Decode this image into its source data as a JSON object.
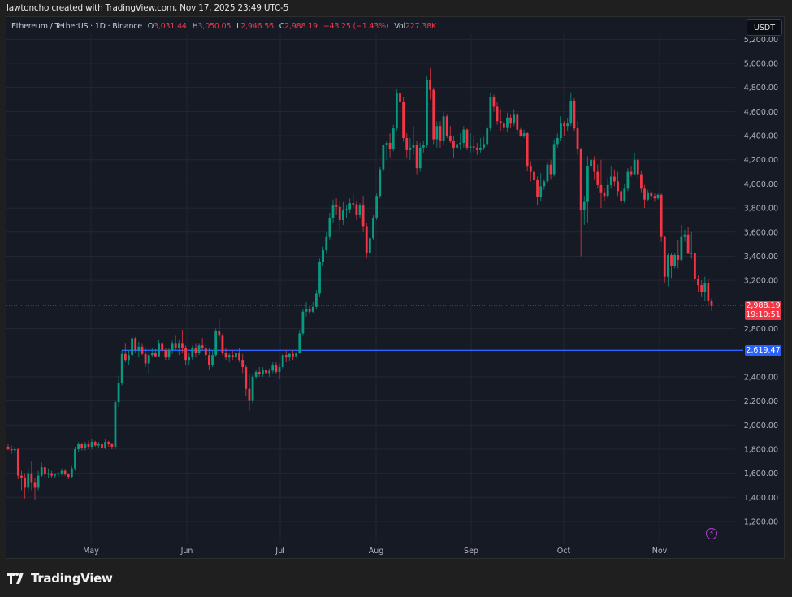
{
  "header": {
    "credit": "lawtoncho created with TradingView.com, Nov 17, 2025 23:49 UTC-5"
  },
  "legend": {
    "symbol": "Ethereum / TetherUS · 1D · Binance",
    "open_label": "O",
    "open": "3,031.44",
    "high_label": "H",
    "high": "3,050.05",
    "low_label": "L",
    "low": "2,946.56",
    "close_label": "C",
    "close": "2,988.19",
    "change": "−43.25 (−1.43%)",
    "vol_label": "Vol",
    "vol": "227.38K"
  },
  "currency_button": "USDT",
  "price_badge": {
    "price": "2,988.19",
    "countdown": "19:10:51",
    "color": "#f23645"
  },
  "hline_badge": {
    "price": "2,619.47",
    "color": "#2962ff"
  },
  "brand": "TradingView",
  "colors": {
    "up": "#089981",
    "down": "#f23645",
    "hline": "#2962ff",
    "background": "#161a25",
    "grid": "#232734"
  },
  "chart_data": {
    "type": "candlestick",
    "title": "Ethereum / TetherUS · 1D · Binance",
    "xlabel": "",
    "ylabel": "USDT",
    "ylim": [
      1100,
      5250
    ],
    "y_ticks": [
      "5,200.00",
      "5,000.00",
      "4,800.00",
      "4,600.00",
      "4,400.00",
      "4,200.00",
      "4,000.00",
      "3,800.00",
      "3,600.00",
      "3,400.00",
      "3,200.00",
      "2,800.00",
      "2,400.00",
      "2,200.00",
      "2,000.00",
      "1,800.00",
      "1,600.00",
      "1,400.00",
      "1,200.00"
    ],
    "x_ticks": [
      "May",
      "Jun",
      "Jul",
      "Aug",
      "Sep",
      "Oct",
      "Nov"
    ],
    "last_price": 2988.19,
    "horizontal_line": 2619.47,
    "grid": true,
    "candles_ohlc": [
      [
        1820,
        1840,
        1790,
        1800
      ],
      [
        1800,
        1830,
        1760,
        1790
      ],
      [
        1790,
        1820,
        1760,
        1800
      ],
      [
        1800,
        1810,
        1550,
        1580
      ],
      [
        1580,
        1620,
        1460,
        1560
      ],
      [
        1560,
        1600,
        1390,
        1480
      ],
      [
        1480,
        1640,
        1440,
        1600
      ],
      [
        1600,
        1700,
        1460,
        1520
      ],
      [
        1520,
        1560,
        1380,
        1480
      ],
      [
        1480,
        1620,
        1460,
        1580
      ],
      [
        1580,
        1690,
        1570,
        1650
      ],
      [
        1650,
        1660,
        1560,
        1590
      ],
      [
        1590,
        1640,
        1560,
        1600
      ],
      [
        1600,
        1620,
        1560,
        1580
      ],
      [
        1580,
        1600,
        1560,
        1590
      ],
      [
        1590,
        1610,
        1570,
        1600
      ],
      [
        1600,
        1640,
        1580,
        1620
      ],
      [
        1620,
        1630,
        1580,
        1590
      ],
      [
        1590,
        1600,
        1550,
        1570
      ],
      [
        1570,
        1660,
        1560,
        1640
      ],
      [
        1640,
        1820,
        1620,
        1800
      ],
      [
        1800,
        1860,
        1780,
        1840
      ],
      [
        1840,
        1850,
        1790,
        1810
      ],
      [
        1810,
        1860,
        1790,
        1840
      ],
      [
        1840,
        1870,
        1800,
        1820
      ],
      [
        1820,
        1880,
        1800,
        1860
      ],
      [
        1860,
        1870,
        1820,
        1830
      ],
      [
        1830,
        1860,
        1810,
        1840
      ],
      [
        1840,
        1860,
        1800,
        1810
      ],
      [
        1810,
        1880,
        1800,
        1860
      ],
      [
        1860,
        1870,
        1820,
        1840
      ],
      [
        1840,
        1850,
        1800,
        1820
      ],
      [
        1820,
        2200,
        1800,
        2190
      ],
      [
        2190,
        2410,
        2150,
        2350
      ],
      [
        2350,
        2620,
        2330,
        2590
      ],
      [
        2590,
        2680,
        2520,
        2540
      ],
      [
        2540,
        2620,
        2500,
        2580
      ],
      [
        2580,
        2750,
        2560,
        2720
      ],
      [
        2720,
        2730,
        2600,
        2620
      ],
      [
        2620,
        2690,
        2560,
        2650
      ],
      [
        2650,
        2680,
        2580,
        2590
      ],
      [
        2590,
        2640,
        2480,
        2510
      ],
      [
        2510,
        2610,
        2430,
        2580
      ],
      [
        2580,
        2640,
        2560,
        2600
      ],
      [
        2600,
        2630,
        2560,
        2570
      ],
      [
        2570,
        2710,
        2560,
        2680
      ],
      [
        2680,
        2690,
        2600,
        2620
      ],
      [
        2620,
        2640,
        2540,
        2560
      ],
      [
        2560,
        2640,
        2540,
        2620
      ],
      [
        2620,
        2700,
        2590,
        2680
      ],
      [
        2680,
        2740,
        2620,
        2640
      ],
      [
        2640,
        2710,
        2580,
        2680
      ],
      [
        2680,
        2790,
        2600,
        2640
      ],
      [
        2640,
        2660,
        2500,
        2540
      ],
      [
        2540,
        2600,
        2500,
        2560
      ],
      [
        2560,
        2660,
        2540,
        2640
      ],
      [
        2640,
        2680,
        2560,
        2600
      ],
      [
        2600,
        2680,
        2580,
        2660
      ],
      [
        2660,
        2720,
        2620,
        2640
      ],
      [
        2640,
        2680,
        2540,
        2580
      ],
      [
        2580,
        2640,
        2460,
        2500
      ],
      [
        2500,
        2620,
        2480,
        2580
      ],
      [
        2580,
        2800,
        2570,
        2780
      ],
      [
        2780,
        2880,
        2700,
        2740
      ],
      [
        2740,
        2760,
        2580,
        2600
      ],
      [
        2600,
        2640,
        2540,
        2560
      ],
      [
        2560,
        2600,
        2520,
        2580
      ],
      [
        2580,
        2620,
        2540,
        2560
      ],
      [
        2560,
        2620,
        2520,
        2600
      ],
      [
        2600,
        2640,
        2520,
        2540
      ],
      [
        2540,
        2590,
        2430,
        2480
      ],
      [
        2480,
        2500,
        2240,
        2300
      ],
      [
        2300,
        2420,
        2120,
        2200
      ],
      [
        2200,
        2420,
        2180,
        2400
      ],
      [
        2400,
        2460,
        2380,
        2440
      ],
      [
        2440,
        2480,
        2400,
        2420
      ],
      [
        2420,
        2480,
        2400,
        2460
      ],
      [
        2460,
        2500,
        2410,
        2430
      ],
      [
        2430,
        2470,
        2400,
        2450
      ],
      [
        2450,
        2520,
        2430,
        2500
      ],
      [
        2500,
        2520,
        2420,
        2440
      ],
      [
        2440,
        2510,
        2380,
        2480
      ],
      [
        2480,
        2600,
        2460,
        2580
      ],
      [
        2580,
        2620,
        2520,
        2560
      ],
      [
        2560,
        2600,
        2530,
        2590
      ],
      [
        2590,
        2620,
        2540,
        2570
      ],
      [
        2570,
        2610,
        2540,
        2600
      ],
      [
        2600,
        2790,
        2590,
        2760
      ],
      [
        2760,
        2960,
        2740,
        2940
      ],
      [
        2940,
        3020,
        2900,
        2960
      ],
      [
        2960,
        2990,
        2920,
        2940
      ],
      [
        2940,
        3020,
        2930,
        2980
      ],
      [
        2980,
        3120,
        2960,
        3090
      ],
      [
        3090,
        3380,
        3060,
        3350
      ],
      [
        3350,
        3480,
        3320,
        3450
      ],
      [
        3450,
        3600,
        3420,
        3560
      ],
      [
        3560,
        3760,
        3540,
        3720
      ],
      [
        3720,
        3870,
        3680,
        3820
      ],
      [
        3820,
        3880,
        3740,
        3810
      ],
      [
        3810,
        3860,
        3620,
        3700
      ],
      [
        3700,
        3850,
        3660,
        3780
      ],
      [
        3780,
        3820,
        3720,
        3790
      ],
      [
        3790,
        3880,
        3760,
        3840
      ],
      [
        3840,
        3920,
        3800,
        3830
      ],
      [
        3830,
        3860,
        3700,
        3740
      ],
      [
        3740,
        3840,
        3720,
        3820
      ],
      [
        3820,
        3900,
        3600,
        3650
      ],
      [
        3650,
        3680,
        3380,
        3430
      ],
      [
        3430,
        3560,
        3370,
        3550
      ],
      [
        3550,
        3740,
        3530,
        3720
      ],
      [
        3720,
        3920,
        3700,
        3900
      ],
      [
        3900,
        4140,
        3880,
        4120
      ],
      [
        4120,
        4330,
        4100,
        4320
      ],
      [
        4320,
        4360,
        4200,
        4340
      ],
      [
        4340,
        4420,
        4220,
        4290
      ],
      [
        4290,
        4490,
        4270,
        4460
      ],
      [
        4460,
        4790,
        4440,
        4750
      ],
      [
        4750,
        4780,
        4640,
        4680
      ],
      [
        4680,
        4720,
        4350,
        4380
      ],
      [
        4380,
        4420,
        4220,
        4280
      ],
      [
        4280,
        4380,
        4200,
        4300
      ],
      [
        4300,
        4480,
        4240,
        4320
      ],
      [
        4320,
        4360,
        4080,
        4130
      ],
      [
        4130,
        4340,
        4100,
        4300
      ],
      [
        4300,
        4360,
        4260,
        4320
      ],
      [
        4320,
        4890,
        4300,
        4860
      ],
      [
        4860,
        4960,
        4700,
        4780
      ],
      [
        4780,
        4800,
        4330,
        4370
      ],
      [
        4370,
        4520,
        4300,
        4480
      ],
      [
        4480,
        4520,
        4300,
        4360
      ],
      [
        4360,
        4600,
        4320,
        4560
      ],
      [
        4560,
        4580,
        4380,
        4400
      ],
      [
        4400,
        4480,
        4340,
        4360
      ],
      [
        4360,
        4400,
        4220,
        4300
      ],
      [
        4300,
        4360,
        4280,
        4330
      ],
      [
        4330,
        4420,
        4280,
        4340
      ],
      [
        4340,
        4480,
        4300,
        4450
      ],
      [
        4450,
        4460,
        4280,
        4300
      ],
      [
        4300,
        4420,
        4260,
        4310
      ],
      [
        4310,
        4400,
        4260,
        4300
      ],
      [
        4300,
        4340,
        4240,
        4280
      ],
      [
        4280,
        4380,
        4260,
        4300
      ],
      [
        4300,
        4390,
        4280,
        4330
      ],
      [
        4330,
        4480,
        4310,
        4460
      ],
      [
        4460,
        4760,
        4440,
        4720
      ],
      [
        4720,
        4740,
        4600,
        4640
      ],
      [
        4640,
        4680,
        4490,
        4520
      ],
      [
        4520,
        4620,
        4440,
        4500
      ],
      [
        4500,
        4520,
        4440,
        4470
      ],
      [
        4470,
        4590,
        4430,
        4550
      ],
      [
        4550,
        4580,
        4460,
        4500
      ],
      [
        4500,
        4620,
        4480,
        4580
      ],
      [
        4580,
        4590,
        4420,
        4450
      ],
      [
        4450,
        4470,
        4390,
        4400
      ],
      [
        4400,
        4450,
        4380,
        4420
      ],
      [
        4420,
        4430,
        4110,
        4150
      ],
      [
        4150,
        4190,
        4020,
        4100
      ],
      [
        4100,
        4110,
        3980,
        4030
      ],
      [
        4030,
        4060,
        3820,
        3890
      ],
      [
        3890,
        4090,
        3860,
        3980
      ],
      [
        3980,
        4040,
        3950,
        4020
      ],
      [
        4020,
        4180,
        4010,
        4160
      ],
      [
        4160,
        4200,
        4040,
        4080
      ],
      [
        4080,
        4370,
        4060,
        4330
      ],
      [
        4330,
        4420,
        4300,
        4380
      ],
      [
        4380,
        4560,
        4360,
        4500
      ],
      [
        4500,
        4520,
        4400,
        4480
      ],
      [
        4480,
        4550,
        4440,
        4500
      ],
      [
        4500,
        4760,
        4480,
        4690
      ],
      [
        4690,
        4710,
        4440,
        4460
      ],
      [
        4460,
        4520,
        4240,
        4290
      ],
      [
        4290,
        4300,
        3400,
        3780
      ],
      [
        3780,
        3900,
        3660,
        3850
      ],
      [
        3850,
        4230,
        3680,
        4150
      ],
      [
        4150,
        4270,
        4000,
        4200
      ],
      [
        4200,
        4230,
        4030,
        4100
      ],
      [
        4100,
        4160,
        3960,
        3990
      ],
      [
        3990,
        4200,
        3800,
        3930
      ],
      [
        3930,
        3960,
        3860,
        3900
      ],
      [
        3900,
        4050,
        3880,
        3990
      ],
      [
        3990,
        4150,
        3960,
        4060
      ],
      [
        4060,
        4120,
        3980,
        4020
      ],
      [
        4020,
        4100,
        3900,
        3940
      ],
      [
        3940,
        3960,
        3830,
        3860
      ],
      [
        3860,
        4000,
        3840,
        3960
      ],
      [
        3960,
        4130,
        3940,
        4100
      ],
      [
        4100,
        4150,
        4060,
        4080
      ],
      [
        4080,
        4260,
        4070,
        4200
      ],
      [
        4200,
        4210,
        4050,
        4080
      ],
      [
        4080,
        4110,
        3930,
        3960
      ],
      [
        3960,
        3990,
        3800,
        3870
      ],
      [
        3870,
        3950,
        3860,
        3930
      ],
      [
        3930,
        3940,
        3870,
        3900
      ],
      [
        3900,
        3920,
        3850,
        3880
      ],
      [
        3880,
        3920,
        3870,
        3910
      ],
      [
        3910,
        3920,
        3520,
        3560
      ],
      [
        3560,
        3570,
        3180,
        3230
      ],
      [
        3230,
        3430,
        3150,
        3410
      ],
      [
        3410,
        3430,
        3220,
        3320
      ],
      [
        3320,
        3430,
        3300,
        3410
      ],
      [
        3410,
        3530,
        3300,
        3370
      ],
      [
        3370,
        3660,
        3360,
        3560
      ],
      [
        3560,
        3620,
        3520,
        3580
      ],
      [
        3580,
        3640,
        3420,
        3420
      ],
      [
        3420,
        3600,
        3380,
        3430
      ],
      [
        3430,
        3430,
        3180,
        3210
      ],
      [
        3210,
        3240,
        3100,
        3160
      ],
      [
        3160,
        3200,
        3060,
        3100
      ],
      [
        3100,
        3230,
        3030,
        3180
      ],
      [
        3180,
        3210,
        3000,
        3031
      ],
      [
        3031,
        3050,
        2947,
        2988
      ]
    ]
  }
}
